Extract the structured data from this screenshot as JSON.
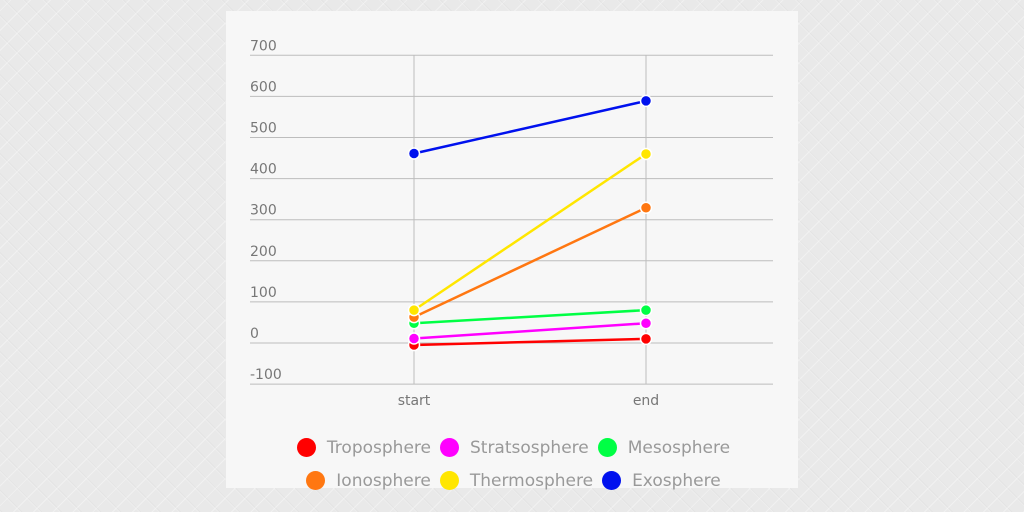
{
  "chart_data": {
    "type": "line",
    "title": "",
    "xlabel": "",
    "ylabel": "",
    "categories": [
      "start",
      "end"
    ],
    "ylim": [
      -100,
      700
    ],
    "yticks": [
      -100,
      0,
      100,
      200,
      300,
      400,
      500,
      600,
      700
    ],
    "grid": true,
    "legend_position": "bottom",
    "series": [
      {
        "name": "Troposphere",
        "color": "#ff0000",
        "values": [
          -5,
          10
        ]
      },
      {
        "name": "Stratsosphere",
        "color": "#ff00ff",
        "values": [
          11,
          48
        ]
      },
      {
        "name": "Mesosphere",
        "color": "#00ff44",
        "values": [
          48,
          80
        ]
      },
      {
        "name": "Ionosphere",
        "color": "#ff7711",
        "values": [
          63,
          329
        ]
      },
      {
        "name": "Thermosphere",
        "color": "#ffe600",
        "values": [
          80,
          460
        ]
      },
      {
        "name": "Exosphere",
        "color": "#0011ee",
        "values": [
          461,
          589
        ]
      }
    ]
  },
  "legend": {
    "rows": [
      [
        {
          "label": "Troposphere",
          "color": "#ff0000"
        },
        {
          "label": "Stratsosphere",
          "color": "#ff00ff"
        },
        {
          "label": "Mesosphere",
          "color": "#00ff44"
        }
      ],
      [
        {
          "label": "Ionosphere",
          "color": "#ff7711"
        },
        {
          "label": "Thermosphere",
          "color": "#ffe600"
        },
        {
          "label": "Exosphere",
          "color": "#0011ee"
        }
      ]
    ]
  }
}
